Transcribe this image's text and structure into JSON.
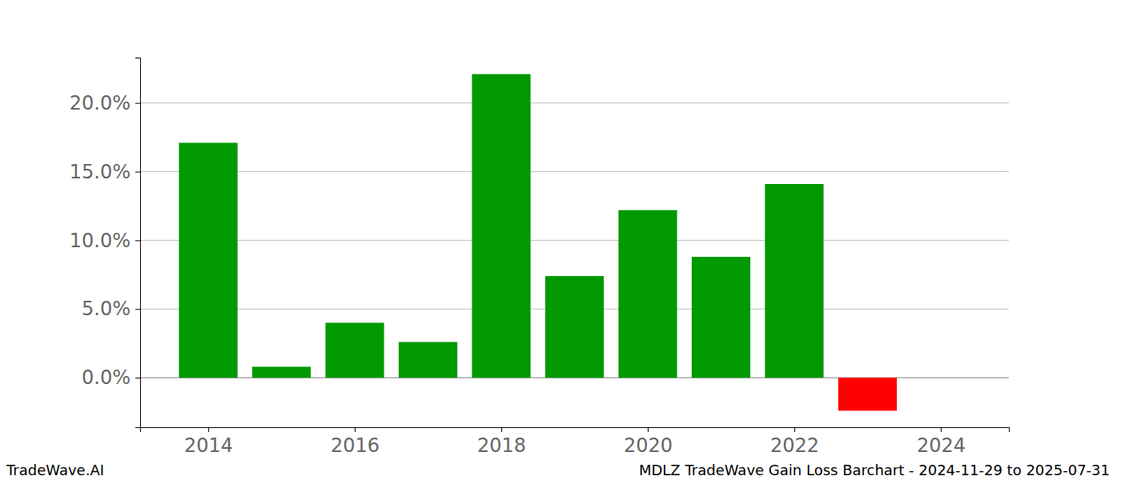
{
  "chart_data": {
    "type": "bar",
    "title": "MDLZ TradeWave Gain Loss Barchart - 2024-11-29 to 2025-07-31",
    "annotations": [
      "TradeWave.AI"
    ],
    "x": [
      2014,
      2015,
      2016,
      2017,
      2018,
      2019,
      2020,
      2021,
      2022,
      2023
    ],
    "values": [
      17.1,
      0.8,
      4.0,
      2.6,
      22.1,
      7.4,
      12.2,
      8.8,
      14.1,
      -2.4
    ],
    "colors": [
      "#009900",
      "#009900",
      "#009900",
      "#009900",
      "#009900",
      "#009900",
      "#009900",
      "#009900",
      "#009900",
      "#ff0000"
    ],
    "xlim": [
      2013.07,
      2024.93
    ],
    "xticks": [
      2014,
      2016,
      2018,
      2020,
      2022,
      2024
    ],
    "ylim": [
      -3.6,
      23.3
    ],
    "yticks": [
      {
        "value": 0,
        "label": "0.0%"
      },
      {
        "value": 5,
        "label": "5.0%"
      },
      {
        "value": 10,
        "label": "10.0%"
      },
      {
        "value": 15,
        "label": "15.0%"
      },
      {
        "value": 20,
        "label": "20.0%"
      }
    ],
    "grid": true
  }
}
